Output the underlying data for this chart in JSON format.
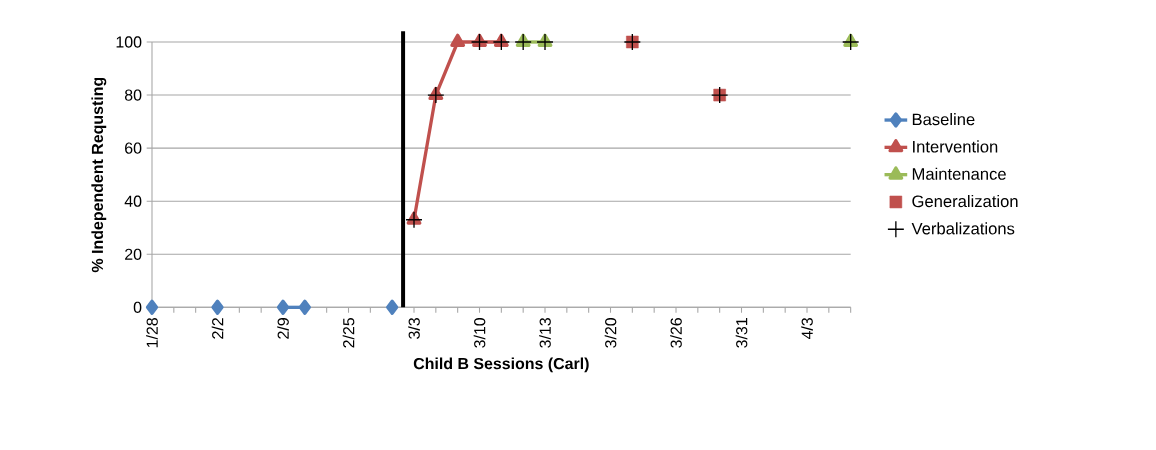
{
  "chart_data": {
    "type": "line",
    "xlabel": "Child B Sessions (Carl)",
    "ylabel": "% Independent Requsting",
    "categories": [
      "1/28",
      null,
      null,
      "2/2",
      null,
      null,
      "2/9",
      null,
      null,
      "2/25",
      null,
      null,
      "3/3",
      null,
      null,
      "3/10",
      null,
      null,
      "3/13",
      null,
      null,
      "3/20",
      null,
      null,
      "3/26",
      null,
      null,
      "3/31",
      null,
      null,
      "4/3",
      null,
      null
    ],
    "series": [
      {
        "name": "Baseline",
        "color": "#4f81bd",
        "marker": "diamond",
        "values": [
          0,
          null,
          null,
          0,
          null,
          null,
          0,
          0,
          null,
          null,
          null,
          0,
          null,
          null,
          null,
          null,
          null,
          null,
          null,
          null,
          null,
          null,
          null,
          null,
          null,
          null,
          null,
          null,
          null,
          null,
          null,
          null,
          null
        ]
      },
      {
        "name": "Intervention",
        "color": "#c0504d",
        "marker": "triangle",
        "values": [
          null,
          null,
          null,
          null,
          null,
          null,
          null,
          null,
          null,
          null,
          null,
          null,
          33,
          80,
          100,
          100,
          100,
          null,
          null,
          null,
          null,
          null,
          null,
          null,
          null,
          null,
          null,
          null,
          null,
          null,
          null,
          null,
          null
        ]
      },
      {
        "name": "Maintenance",
        "color": "#9bbb59",
        "marker": "triangle",
        "values": [
          null,
          null,
          null,
          null,
          null,
          null,
          null,
          null,
          null,
          null,
          null,
          null,
          null,
          null,
          null,
          null,
          null,
          100,
          100,
          null,
          null,
          null,
          null,
          null,
          null,
          null,
          null,
          null,
          null,
          null,
          null,
          null,
          100
        ]
      },
      {
        "name": "Generalization",
        "type": "scatter",
        "color": "#c0504d",
        "marker": "square",
        "values": [
          null,
          null,
          null,
          null,
          null,
          null,
          null,
          null,
          null,
          null,
          null,
          null,
          null,
          null,
          null,
          null,
          null,
          null,
          null,
          null,
          null,
          null,
          100,
          null,
          null,
          null,
          80,
          null,
          null,
          null,
          null,
          null,
          null
        ]
      },
      {
        "name": "Verbalizations",
        "type": "scatter",
        "color": "#000000",
        "marker": "cross",
        "values": [
          null,
          null,
          null,
          null,
          null,
          null,
          null,
          null,
          null,
          null,
          null,
          null,
          33,
          80,
          null,
          100,
          100,
          100,
          100,
          null,
          null,
          null,
          100,
          null,
          null,
          null,
          80,
          null,
          null,
          null,
          null,
          null,
          100
        ]
      }
    ],
    "ylim": [
      0,
      100
    ],
    "yticks": [
      0,
      20,
      40,
      60,
      80,
      100
    ],
    "grid": "y",
    "legend": "right"
  }
}
